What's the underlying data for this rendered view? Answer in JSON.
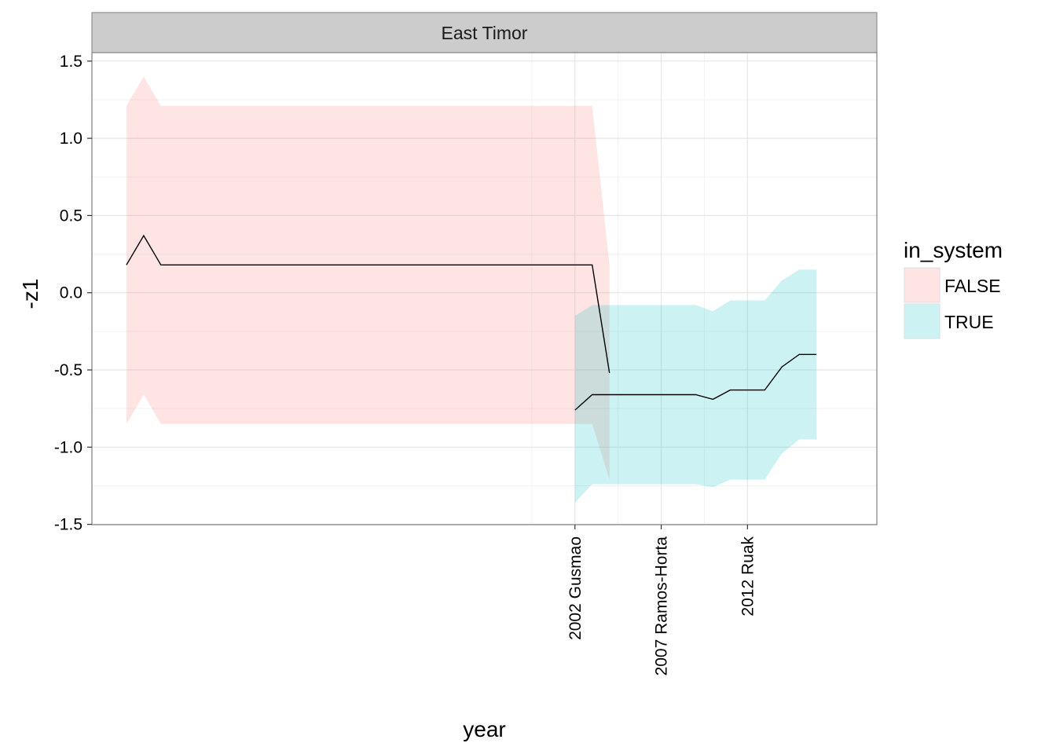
{
  "chart_data": {
    "type": "area",
    "panel_title": "East Timor",
    "xlabel": "year",
    "ylabel": "-z1",
    "ylim": [
      -1.5,
      1.5
    ],
    "xlim": [
      1974,
      2019.5
    ],
    "y_ticks": [
      1.5,
      1.0,
      0.5,
      0.0,
      -0.5,
      -1.0,
      -1.5
    ],
    "y_tick_labels": [
      "1.5",
      "1.0",
      "0.5",
      "0.0",
      "-0.5",
      "-1.0",
      "-1.5"
    ],
    "x_ticks": [
      2002,
      2007,
      2012
    ],
    "x_tick_labels": [
      "2002 Gusmao",
      "2007 Ramos-Horta",
      "2012 Ruak"
    ],
    "x_minor_gridlines": [
      1999.5,
      2004.5,
      2009.5
    ],
    "legend": {
      "title": "in_system",
      "placement": "right",
      "entries": [
        {
          "label": "FALSE",
          "color": "#F8766D"
        },
        {
          "label": "TRUE",
          "color": "#00BFC4"
        }
      ]
    },
    "series": [
      {
        "name": "FALSE",
        "color": "#F8766D",
        "x": [
          1976,
          1977,
          1978,
          2003,
          2004
        ],
        "y": [
          0.18,
          0.37,
          0.18,
          0.18,
          -0.52
        ],
        "lower": [
          -0.85,
          -0.66,
          -0.85,
          -0.85,
          -1.21
        ],
        "upper": [
          1.21,
          1.4,
          1.21,
          1.21,
          0.18
        ]
      },
      {
        "name": "TRUE",
        "color": "#00BFC4",
        "x": [
          2002,
          2003,
          2004,
          2005,
          2006,
          2007,
          2008,
          2009,
          2010,
          2011,
          2012,
          2013,
          2014,
          2015,
          2016
        ],
        "y": [
          -0.76,
          -0.66,
          -0.66,
          -0.66,
          -0.66,
          -0.66,
          -0.66,
          -0.66,
          -0.69,
          -0.63,
          -0.63,
          -0.63,
          -0.48,
          -0.4,
          -0.4
        ],
        "lower": [
          -1.36,
          -1.24,
          -1.24,
          -1.24,
          -1.24,
          -1.24,
          -1.24,
          -1.24,
          -1.26,
          -1.21,
          -1.21,
          -1.21,
          -1.04,
          -0.95,
          -0.95
        ],
        "upper": [
          -0.15,
          -0.08,
          -0.08,
          -0.08,
          -0.08,
          -0.08,
          -0.08,
          -0.08,
          -0.12,
          -0.05,
          -0.05,
          -0.05,
          0.08,
          0.15,
          0.15
        ]
      }
    ]
  }
}
